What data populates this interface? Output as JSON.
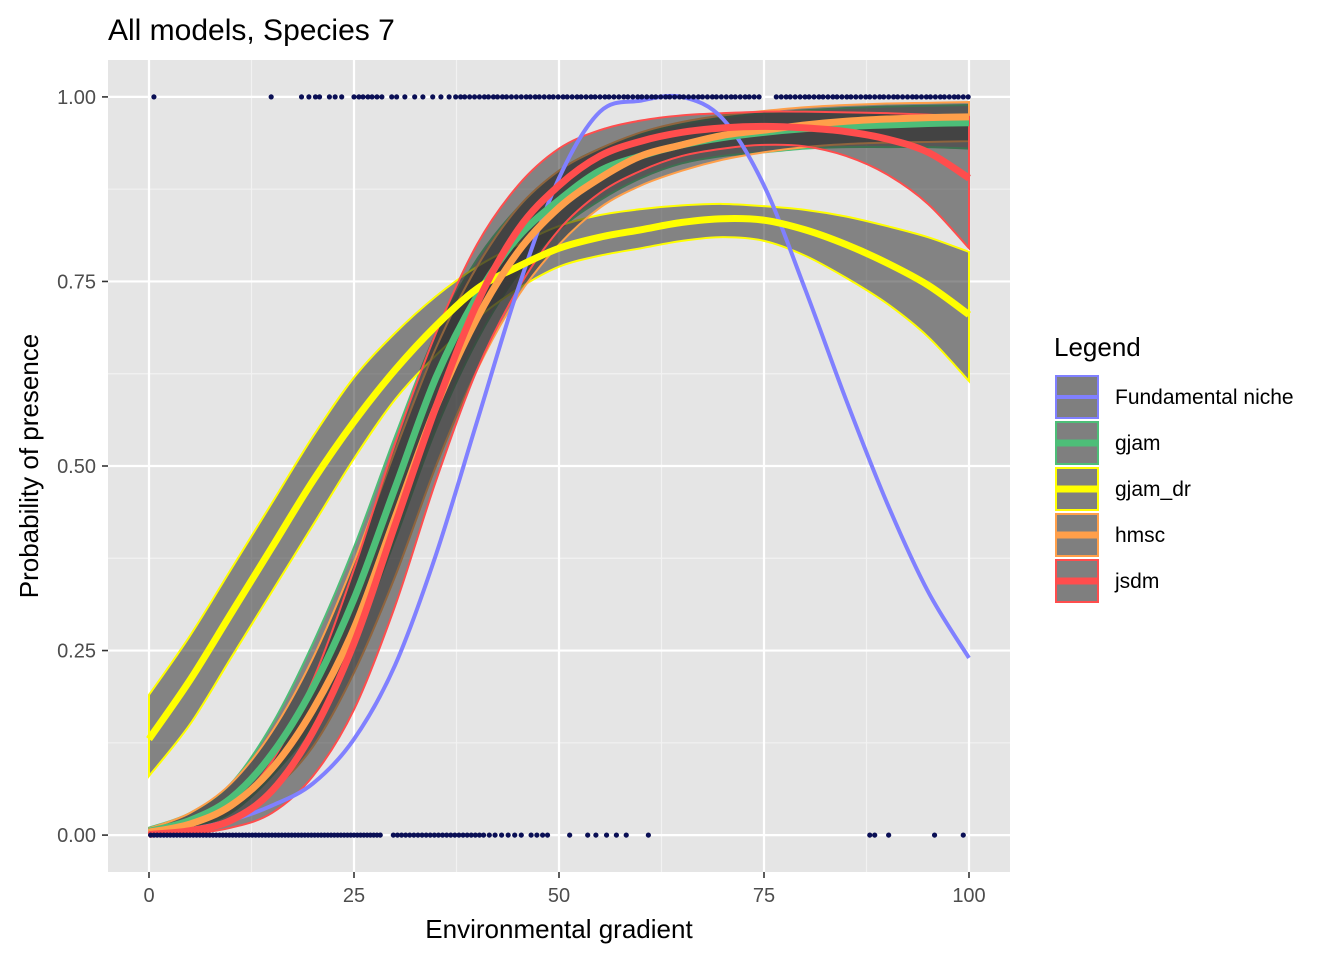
{
  "chart_data": {
    "type": "line",
    "title": "All models, Species 7",
    "xlabel": "Environmental gradient",
    "ylabel": "Probability of presence",
    "xlim": [
      -5,
      105
    ],
    "ylim": [
      -0.05,
      1.05
    ],
    "xticks": [
      0,
      25,
      50,
      75,
      100
    ],
    "xtick_labels": [
      "0",
      "25",
      "50",
      "75",
      "100"
    ],
    "yticks": [
      0,
      0.25,
      0.5,
      0.75,
      1.0
    ],
    "ytick_labels": [
      "0.00",
      "0.25",
      "0.50",
      "0.75",
      "1.00"
    ],
    "grid": true,
    "legend": {
      "title": "Legend",
      "placement": "right",
      "entries": [
        {
          "label": "Fundamental niche",
          "color": "#8080ff"
        },
        {
          "label": "gjam",
          "color": "#4dbe78"
        },
        {
          "label": "gjam_dr",
          "color": "#ffff00"
        },
        {
          "label": "hmsc",
          "color": "#ff9f4a"
        },
        {
          "label": "jsdm",
          "color": "#ff4d4d"
        }
      ]
    },
    "x": [
      0,
      5,
      10,
      15,
      20,
      25,
      30,
      35,
      40,
      45,
      50,
      55,
      60,
      65,
      70,
      75,
      80,
      85,
      90,
      95,
      100
    ],
    "series": [
      {
        "name": "Fundamental niche",
        "color": "#8080ff",
        "values": [
          0.003,
          0.008,
          0.02,
          0.04,
          0.07,
          0.13,
          0.23,
          0.38,
          0.56,
          0.74,
          0.89,
          0.98,
          0.995,
          1.0,
          0.97,
          0.88,
          0.74,
          0.59,
          0.45,
          0.33,
          0.24
        ]
      },
      {
        "name": "gjam",
        "color": "#4dbe78",
        "values": [
          0.005,
          0.02,
          0.05,
          0.11,
          0.2,
          0.32,
          0.47,
          0.62,
          0.73,
          0.81,
          0.86,
          0.9,
          0.92,
          0.935,
          0.945,
          0.952,
          0.957,
          0.96,
          0.962,
          0.964,
          0.965
        ],
        "lower": [
          0.002,
          0.01,
          0.03,
          0.08,
          0.15,
          0.26,
          0.4,
          0.55,
          0.67,
          0.76,
          0.82,
          0.86,
          0.89,
          0.91,
          0.92,
          0.925,
          0.93,
          0.932,
          0.932,
          0.932,
          0.93
        ],
        "upper": [
          0.01,
          0.03,
          0.07,
          0.15,
          0.26,
          0.39,
          0.54,
          0.68,
          0.78,
          0.85,
          0.9,
          0.93,
          0.95,
          0.963,
          0.972,
          0.978,
          0.982,
          0.985,
          0.987,
          0.988,
          0.989
        ]
      },
      {
        "name": "gjam_dr",
        "color": "#ffff00",
        "values": [
          0.13,
          0.21,
          0.3,
          0.39,
          0.48,
          0.56,
          0.63,
          0.69,
          0.74,
          0.77,
          0.795,
          0.81,
          0.82,
          0.83,
          0.835,
          0.833,
          0.82,
          0.8,
          0.775,
          0.745,
          0.705
        ],
        "lower": [
          0.08,
          0.15,
          0.24,
          0.33,
          0.42,
          0.51,
          0.59,
          0.65,
          0.7,
          0.74,
          0.77,
          0.785,
          0.795,
          0.805,
          0.81,
          0.805,
          0.785,
          0.755,
          0.72,
          0.675,
          0.615
        ],
        "upper": [
          0.19,
          0.27,
          0.36,
          0.45,
          0.54,
          0.62,
          0.68,
          0.73,
          0.77,
          0.8,
          0.825,
          0.84,
          0.848,
          0.853,
          0.855,
          0.852,
          0.847,
          0.838,
          0.825,
          0.81,
          0.79
        ]
      },
      {
        "name": "hmsc",
        "color": "#ff9f4a",
        "values": [
          0.004,
          0.015,
          0.04,
          0.09,
          0.17,
          0.28,
          0.43,
          0.58,
          0.7,
          0.79,
          0.85,
          0.89,
          0.92,
          0.935,
          0.948,
          0.955,
          0.962,
          0.967,
          0.97,
          0.972,
          0.973
        ],
        "lower": [
          0.001,
          0.006,
          0.02,
          0.06,
          0.12,
          0.22,
          0.35,
          0.5,
          0.63,
          0.73,
          0.8,
          0.85,
          0.88,
          0.9,
          0.915,
          0.925,
          0.932,
          0.936,
          0.938,
          0.939,
          0.94
        ],
        "upper": [
          0.009,
          0.03,
          0.07,
          0.14,
          0.24,
          0.37,
          0.52,
          0.66,
          0.77,
          0.85,
          0.9,
          0.93,
          0.952,
          0.966,
          0.975,
          0.981,
          0.986,
          0.989,
          0.991,
          0.992,
          0.993
        ]
      },
      {
        "name": "jsdm",
        "color": "#ff4d4d",
        "values": [
          0.001,
          0.006,
          0.02,
          0.06,
          0.14,
          0.26,
          0.42,
          0.58,
          0.72,
          0.82,
          0.88,
          0.92,
          0.94,
          0.952,
          0.958,
          0.96,
          0.958,
          0.953,
          0.943,
          0.925,
          0.89
        ],
        "lower": [
          0.0,
          0.002,
          0.01,
          0.03,
          0.08,
          0.17,
          0.31,
          0.48,
          0.63,
          0.74,
          0.82,
          0.87,
          0.9,
          0.92,
          0.93,
          0.935,
          0.933,
          0.92,
          0.895,
          0.855,
          0.795
        ],
        "upper": [
          0.003,
          0.012,
          0.04,
          0.1,
          0.21,
          0.36,
          0.53,
          0.68,
          0.8,
          0.88,
          0.93,
          0.955,
          0.968,
          0.975,
          0.978,
          0.98,
          0.98,
          0.979,
          0.978,
          0.976,
          0.973
        ]
      }
    ],
    "observations": {
      "name": "observed presence/absence",
      "color": "#0a0f55",
      "presence_x": [
        0.6,
        14.9,
        18.6,
        19.5,
        20.3,
        20.8,
        22.0,
        22.7,
        23.5,
        25.0,
        25.6,
        26.1,
        26.7,
        27.2,
        27.8,
        28.4,
        29.6,
        30.2,
        31.2,
        32.4,
        33.4,
        34.6,
        35.6,
        36.6,
        37.4,
        38.0,
        38.5,
        39.1,
        39.7,
        40.3,
        40.9,
        41.4,
        42.0,
        42.5,
        43.1,
        43.6,
        44.2,
        44.8,
        45.4,
        46.0,
        46.5,
        47.1,
        47.6,
        48.2,
        48.8,
        49.3,
        49.9,
        50.5,
        51.0,
        51.6,
        52.2,
        52.7,
        53.3,
        53.9,
        54.4,
        55.0,
        55.6,
        56.1,
        56.7,
        57.3,
        57.9,
        58.4,
        59.0,
        59.6,
        60.1,
        60.7,
        61.3,
        61.8,
        62.4,
        63.0,
        63.5,
        64.1,
        64.7,
        65.2,
        65.8,
        66.4,
        67.0,
        67.5,
        68.1,
        68.7,
        69.2,
        69.8,
        70.4,
        71.0,
        71.5,
        72.1,
        72.7,
        73.2,
        73.8,
        74.4,
        76.5,
        77.1,
        77.7,
        78.2,
        78.8,
        79.4,
        80.0,
        80.5,
        81.1,
        81.7,
        82.2,
        82.8,
        83.4,
        83.9,
        84.5,
        85.1,
        85.6,
        86.2,
        86.8,
        87.4,
        87.9,
        88.5,
        89.1,
        89.6,
        90.2,
        90.8,
        91.3,
        91.9,
        92.5,
        93.1,
        93.6,
        94.2,
        94.8,
        95.3,
        95.9,
        96.5,
        97.0,
        97.6,
        98.2,
        98.7,
        99.3,
        99.9
      ],
      "absence_x": [
        0.2,
        0.6,
        1.0,
        1.4,
        1.8,
        2.2,
        2.6,
        3.0,
        3.4,
        3.8,
        4.2,
        4.6,
        5.0,
        5.4,
        5.8,
        6.2,
        6.6,
        7.0,
        7.4,
        7.8,
        8.2,
        8.6,
        9.0,
        9.4,
        9.8,
        10.2,
        10.6,
        11.0,
        11.4,
        11.8,
        12.2,
        12.6,
        13.0,
        13.4,
        13.8,
        14.2,
        14.6,
        15.0,
        15.4,
        15.8,
        16.2,
        16.6,
        17.0,
        17.4,
        17.8,
        18.2,
        18.6,
        19.0,
        19.4,
        19.8,
        20.2,
        20.6,
        21.0,
        21.4,
        21.8,
        22.2,
        22.6,
        23.0,
        23.4,
        23.8,
        24.2,
        24.6,
        25.0,
        25.4,
        25.8,
        26.2,
        26.6,
        27.0,
        27.4,
        27.8,
        28.2,
        29.8,
        30.3,
        30.8,
        31.3,
        31.8,
        32.3,
        32.8,
        33.3,
        33.8,
        34.3,
        34.8,
        35.3,
        35.8,
        36.3,
        36.8,
        37.3,
        37.8,
        38.3,
        38.8,
        39.3,
        39.8,
        40.3,
        40.8,
        41.5,
        42.2,
        43.0,
        43.8,
        44.6,
        45.4,
        46.6,
        47.3,
        48.0,
        48.6,
        51.3,
        53.5,
        54.5,
        55.8,
        57.0,
        58.2,
        60.9,
        87.9,
        88.5,
        90.2,
        95.8,
        99.3
      ]
    }
  }
}
